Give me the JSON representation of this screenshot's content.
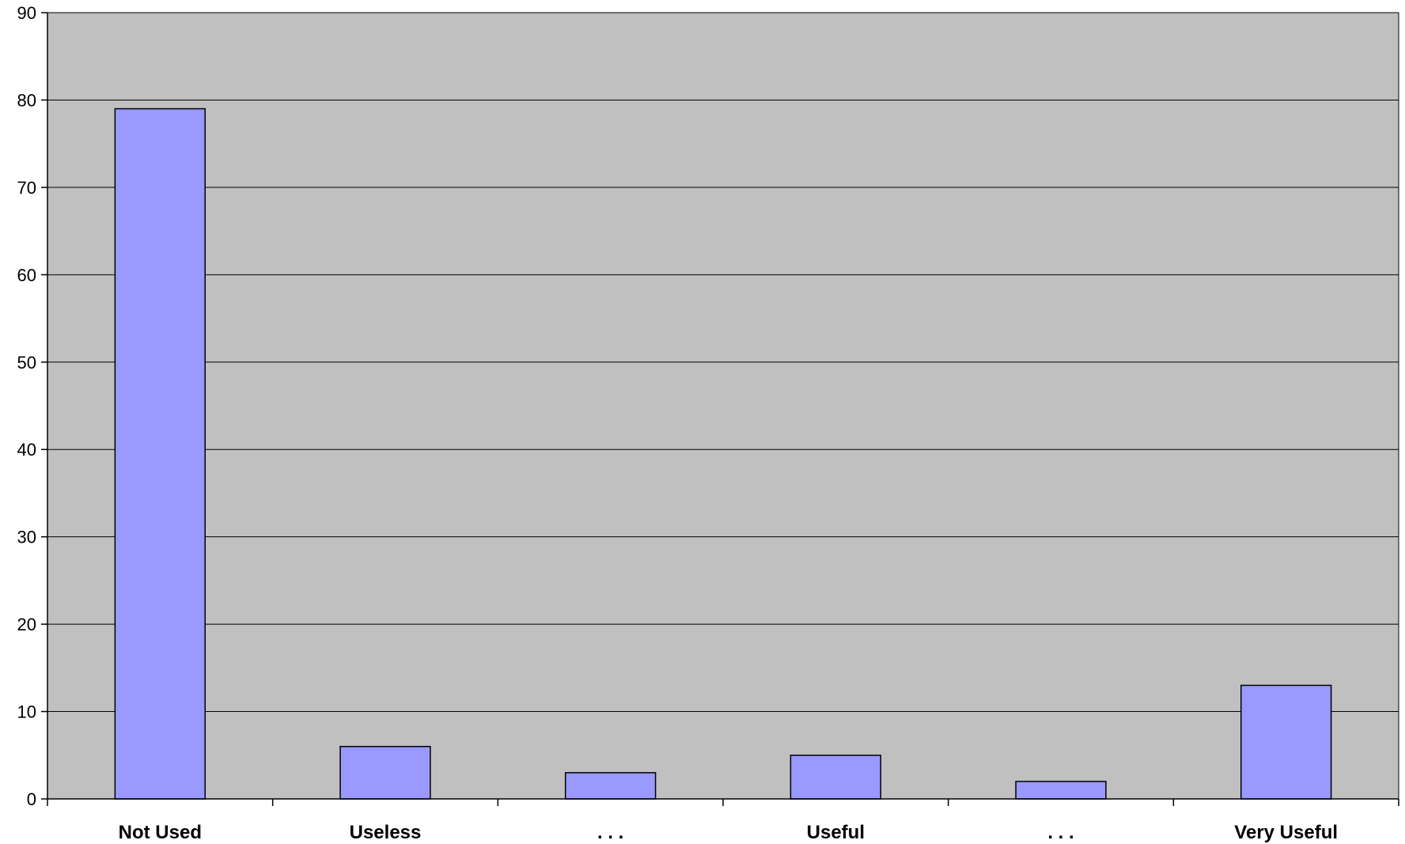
{
  "chart_data": {
    "type": "bar",
    "title": "",
    "xlabel": "",
    "ylabel": "",
    "categories": [
      "Not Used",
      "Useless",
      ". . .",
      "Useful",
      ". . .",
      "Very Useful"
    ],
    "values": [
      79,
      6,
      3,
      5,
      2,
      13
    ],
    "ylim": [
      0,
      90
    ],
    "yticks": [
      "0",
      "10",
      "20",
      "30",
      "40",
      "50",
      "60",
      "70",
      "80",
      "90"
    ],
    "grid": true,
    "legend": "none",
    "colors": {
      "bar_fill": "#9999ff",
      "bar_stroke": "#000000",
      "plot_background": "#c0c0c0",
      "gridline": "#000000"
    }
  }
}
